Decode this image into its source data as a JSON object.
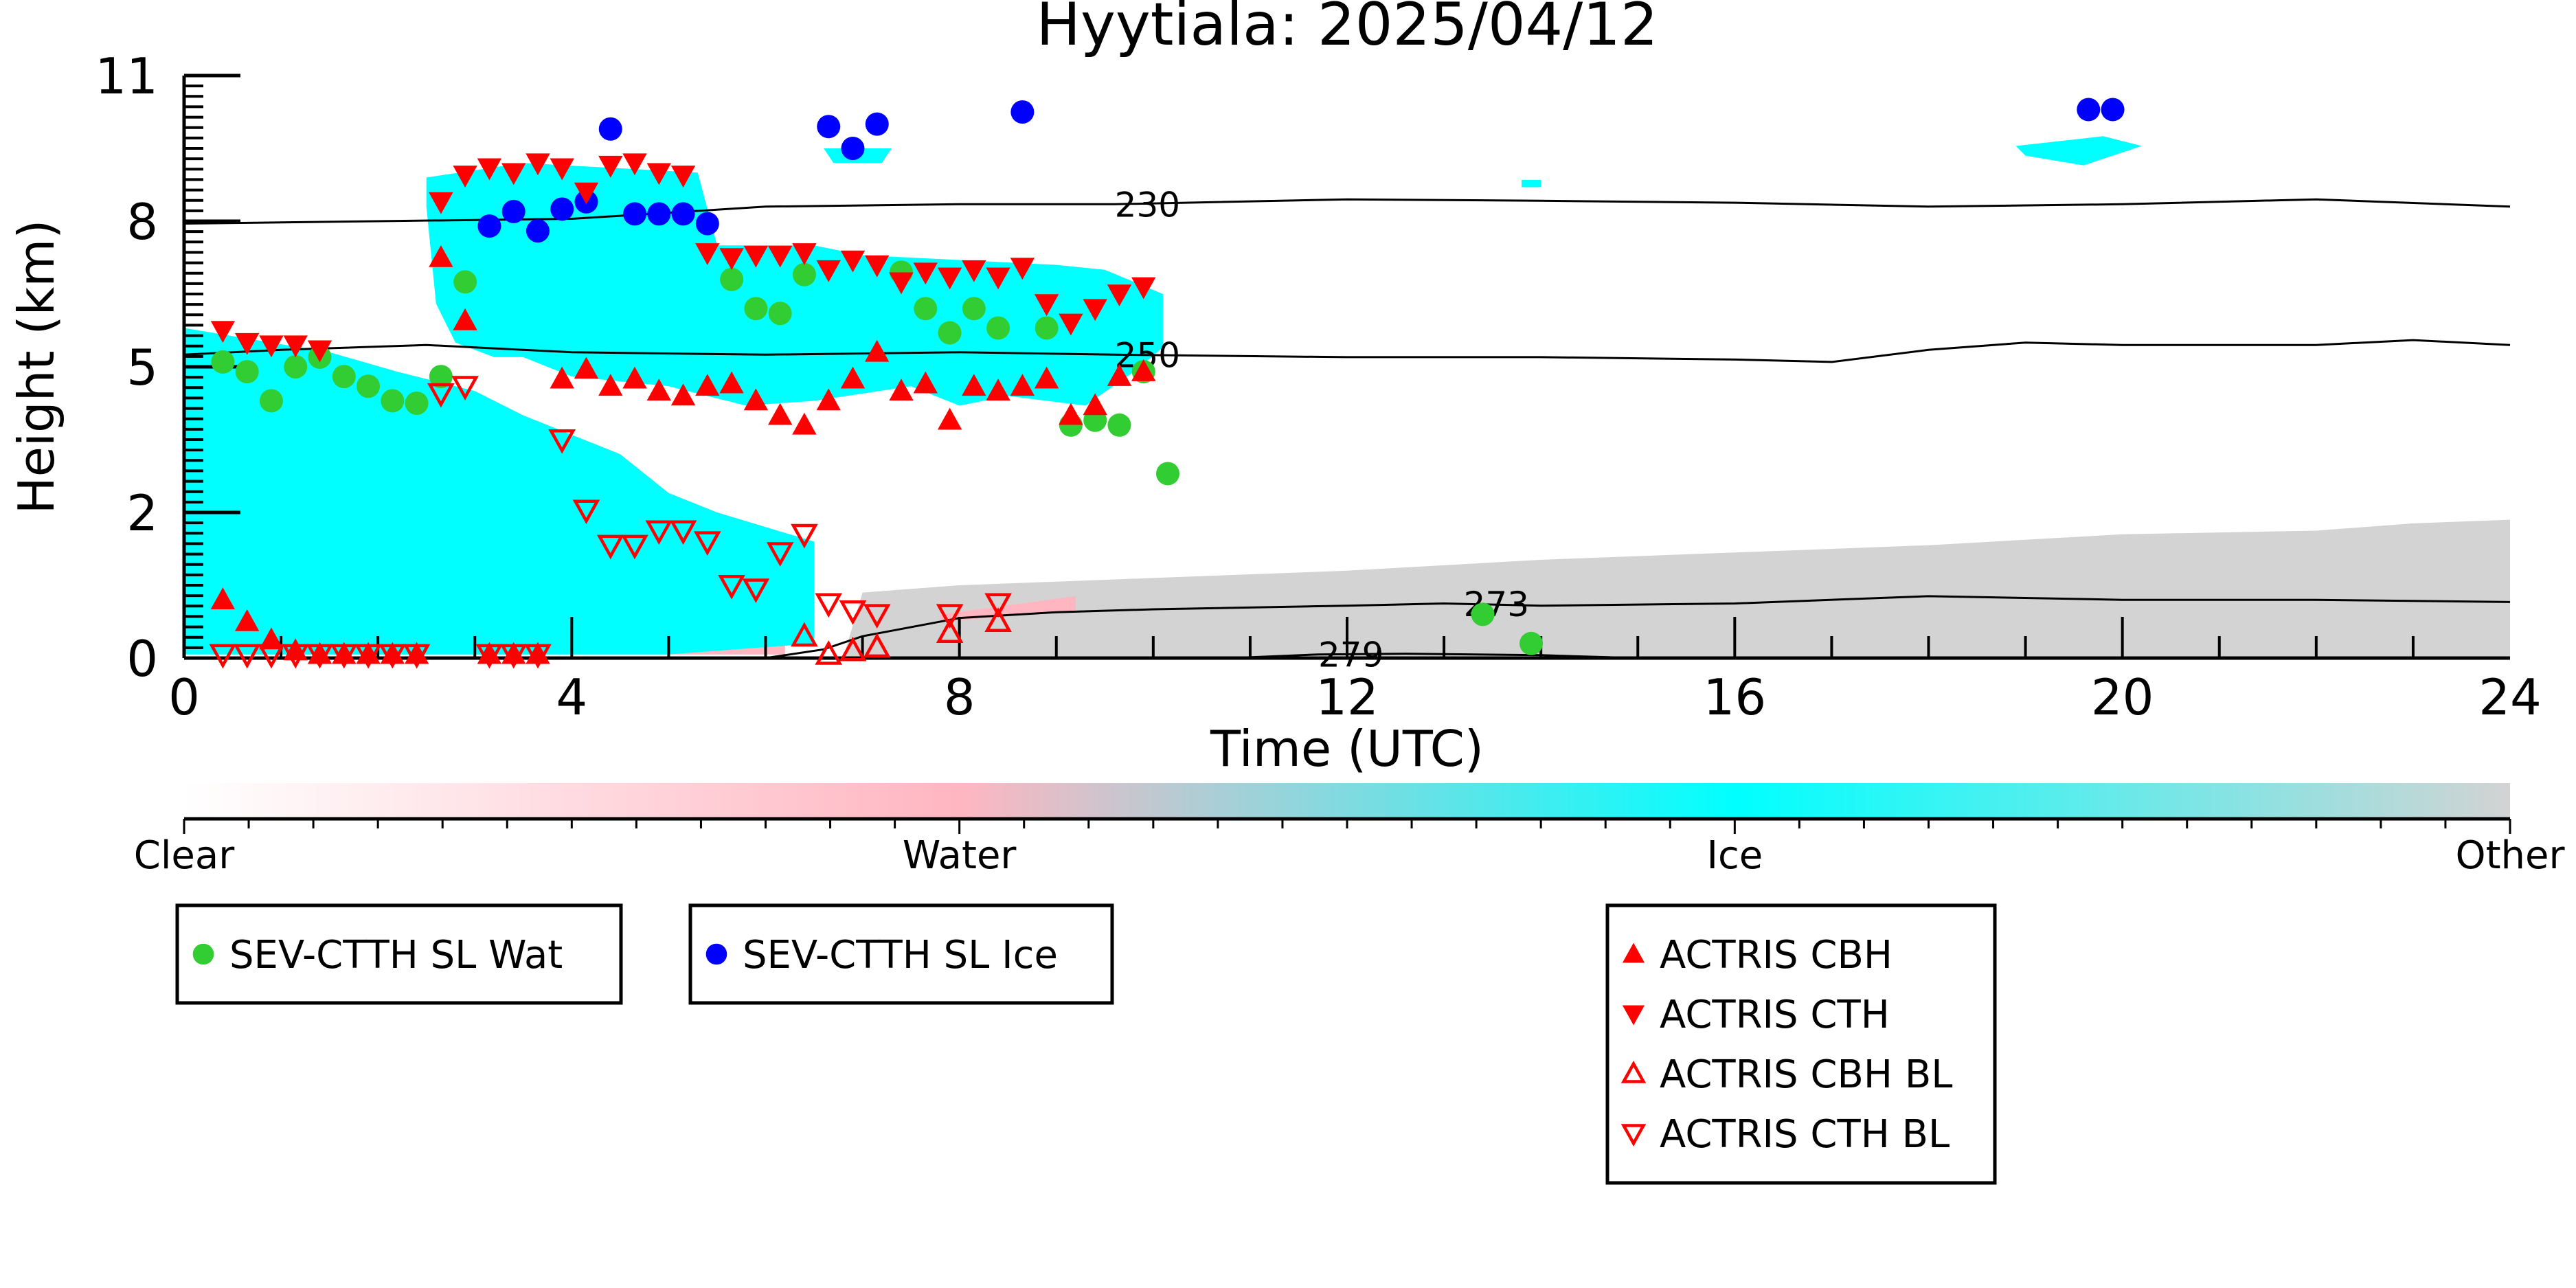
{
  "chart_data": {
    "type": "scatter",
    "title": "Hyytiala: 2025/04/12",
    "xlabel": "Time (UTC)",
    "ylabel": "Height (km)",
    "xlim": [
      0,
      24
    ],
    "ylim": [
      0,
      11
    ],
    "x_ticks": [
      0,
      4,
      8,
      12,
      16,
      20,
      24
    ],
    "y_ticks": [
      0,
      2,
      5,
      8,
      11
    ],
    "y_scale_note": "non-linear: 0,2,5,8,11 equally spaced",
    "colors": {
      "ice": "#00ffff",
      "water": "#ffb6c1",
      "other": "#d3d3d3",
      "wat_marker": "#32cd32",
      "ice_marker": "#0000ff",
      "actris": "#ff0000"
    },
    "colorbar": {
      "labels": [
        "Clear",
        "Water",
        "Ice",
        "Other"
      ]
    },
    "isotherms": [
      {
        "label": "230",
        "label_x": 9.6,
        "points": [
          [
            0,
            7.95
          ],
          [
            2,
            8.0
          ],
          [
            4,
            8.05
          ],
          [
            6,
            8.3
          ],
          [
            8,
            8.35
          ],
          [
            9.6,
            8.35
          ],
          [
            12,
            8.45
          ],
          [
            14,
            8.42
          ],
          [
            16,
            8.38
          ],
          [
            18,
            8.3
          ],
          [
            20,
            8.35
          ],
          [
            22,
            8.45
          ],
          [
            24,
            8.3
          ]
        ]
      },
      {
        "label": "250",
        "label_x": 9.6,
        "points": [
          [
            0,
            5.25
          ],
          [
            1,
            5.35
          ],
          [
            2.5,
            5.45
          ],
          [
            4,
            5.3
          ],
          [
            6,
            5.25
          ],
          [
            8,
            5.3
          ],
          [
            9.6,
            5.25
          ],
          [
            12,
            5.2
          ],
          [
            14,
            5.2
          ],
          [
            16,
            5.15
          ],
          [
            17,
            5.1
          ],
          [
            18,
            5.35
          ],
          [
            19,
            5.5
          ],
          [
            20,
            5.45
          ],
          [
            22,
            5.45
          ],
          [
            23,
            5.55
          ],
          [
            24,
            5.45
          ]
        ]
      },
      {
        "label": "273",
        "label_x": 13.2,
        "points": [
          [
            0,
            0
          ],
          [
            6,
            0
          ],
          [
            6.6,
            0.12
          ],
          [
            7,
            0.3
          ],
          [
            8,
            0.55
          ],
          [
            9,
            0.63
          ],
          [
            10,
            0.67
          ],
          [
            12,
            0.72
          ],
          [
            13,
            0.75
          ],
          [
            14,
            0.72
          ],
          [
            16,
            0.75
          ],
          [
            18,
            0.85
          ],
          [
            20,
            0.8
          ],
          [
            22,
            0.8
          ],
          [
            24,
            0.77
          ]
        ]
      },
      {
        "label": "279",
        "label_x": 11.7,
        "points": [
          [
            10.8,
            0.0
          ],
          [
            11.7,
            0.05
          ],
          [
            12.6,
            0.06
          ],
          [
            14,
            0.04
          ],
          [
            15,
            0.0
          ]
        ]
      }
    ],
    "cloud_regions": {
      "ice": [
        {
          "points": [
            [
              0,
              5.8
            ],
            [
              1.5,
              5.3
            ],
            [
              2.2,
              4.9
            ],
            [
              3,
              4.5
            ],
            [
              3.5,
              4.0
            ],
            [
              4.5,
              3.2
            ],
            [
              5,
              2.4
            ],
            [
              5.5,
              2.0
            ],
            [
              6,
              1.8
            ],
            [
              6.5,
              1.6
            ],
            [
              6.5,
              0.2
            ],
            [
              5,
              0.05
            ],
            [
              0,
              0.05
            ]
          ]
        },
        {
          "points": [
            [
              2.5,
              8.9
            ],
            [
              3.5,
              9.2
            ],
            [
              5.3,
              9.0
            ],
            [
              5.5,
              7.5
            ],
            [
              6.5,
              7.5
            ],
            [
              7,
              7.3
            ],
            [
              8,
              7.2
            ],
            [
              9,
              7.1
            ],
            [
              9.5,
              7.0
            ],
            [
              10.1,
              6.5
            ],
            [
              10.1,
              5.4
            ],
            [
              9.8,
              4.9
            ],
            [
              9.3,
              4.2
            ],
            [
              8.5,
              4.4
            ],
            [
              8,
              4.2
            ],
            [
              7.5,
              4.6
            ],
            [
              6.5,
              4.3
            ],
            [
              5.8,
              4.2
            ],
            [
              5,
              4.6
            ],
            [
              4,
              4.8
            ],
            [
              3.5,
              5.2
            ],
            [
              3.2,
              5.2
            ],
            [
              2.8,
              5.5
            ],
            [
              2.6,
              6.3
            ],
            [
              2.5,
              8.3
            ]
          ]
        },
        {
          "points": [
            [
              6.6,
              9.5
            ],
            [
              7.3,
              9.5
            ],
            [
              7.2,
              9.2
            ],
            [
              6.7,
              9.2
            ]
          ]
        },
        {
          "points": [
            [
              18.9,
              9.55
            ],
            [
              19.8,
              9.75
            ],
            [
              20.2,
              9.55
            ],
            [
              19.6,
              9.15
            ],
            [
              19.0,
              9.35
            ]
          ]
        },
        {
          "points": [
            [
              13.8,
              8.85
            ],
            [
              14.0,
              8.85
            ],
            [
              14.0,
              8.7
            ],
            [
              13.8,
              8.7
            ]
          ]
        }
      ],
      "other": [
        {
          "points": [
            [
              6.8,
              0
            ],
            [
              24,
              0
            ],
            [
              24,
              1.9
            ],
            [
              23,
              1.85
            ],
            [
              22,
              1.75
            ],
            [
              20,
              1.7
            ],
            [
              18,
              1.55
            ],
            [
              16,
              1.45
            ],
            [
              14,
              1.35
            ],
            [
              12,
              1.2
            ],
            [
              10,
              1.1
            ],
            [
              9,
              1.05
            ],
            [
              8,
              1.0
            ],
            [
              7,
              0.9
            ]
          ]
        }
      ],
      "water": [
        {
          "points": [
            [
              0.3,
              0.05
            ],
            [
              6.2,
              0.05
            ],
            [
              6.2,
              0.35
            ],
            [
              0.3,
              0.35
            ]
          ]
        },
        {
          "points": [
            [
              7.8,
              0.6
            ],
            [
              9.2,
              0.85
            ],
            [
              9.2,
              0.65
            ],
            [
              7.8,
              0.5
            ]
          ]
        }
      ]
    },
    "series": [
      {
        "name": "SEV-CTTH SL Wat",
        "marker": "circle",
        "color": "#32cd32",
        "x": [
          0.4,
          0.65,
          0.9,
          1.15,
          1.4,
          1.65,
          1.9,
          2.15,
          2.4,
          2.65,
          2.9,
          5.65,
          5.9,
          6.15,
          6.4,
          7.4,
          7.65,
          7.9,
          8.15,
          8.4,
          8.9,
          9.15,
          9.4,
          9.65,
          9.9,
          10.15,
          13.4,
          13.9
        ],
        "y": [
          5.1,
          4.9,
          4.3,
          5.0,
          5.2,
          4.8,
          4.6,
          4.3,
          4.25,
          4.8,
          6.75,
          6.8,
          6.2,
          6.1,
          6.9,
          6.95,
          6.2,
          5.7,
          6.2,
          5.8,
          5.8,
          3.8,
          3.9,
          3.8,
          4.9,
          2.8,
          0.6,
          0.2
        ]
      },
      {
        "name": "SEV-CTTH SL Ice",
        "marker": "circle",
        "color": "#0000ff",
        "x": [
          3.15,
          3.4,
          3.65,
          3.9,
          4.15,
          4.4,
          4.65,
          4.9,
          5.15,
          5.4,
          6.65,
          6.9,
          7.15,
          8.65,
          19.65,
          19.9
        ],
        "y": [
          7.9,
          8.2,
          7.8,
          8.25,
          8.4,
          9.9,
          8.15,
          8.15,
          8.15,
          7.95,
          9.95,
          9.5,
          10.0,
          10.25,
          10.3,
          10.3
        ]
      },
      {
        "name": "ACTRIS CBH",
        "marker": "triangle-up",
        "color": "#ff0000",
        "x": [
          0.4,
          0.65,
          0.9,
          1.15,
          1.4,
          1.65,
          1.9,
          2.15,
          2.4,
          2.65,
          2.9,
          3.15,
          3.4,
          3.65,
          3.9,
          4.15,
          4.4,
          4.65,
          4.9,
          5.15,
          5.4,
          5.65,
          5.9,
          6.15,
          6.4,
          6.65,
          6.9,
          7.15,
          7.4,
          7.65,
          7.9,
          8.15,
          8.4,
          8.65,
          8.9,
          9.15,
          9.4,
          9.65,
          9.9
        ],
        "y": [
          0.8,
          0.5,
          0.25,
          0.1,
          0.05,
          0.05,
          0.05,
          0.05,
          0.05,
          7.25,
          5.95,
          0.05,
          0.05,
          0.05,
          4.75,
          4.95,
          4.6,
          4.75,
          4.5,
          4.4,
          4.6,
          4.65,
          4.3,
          4.0,
          3.8,
          4.3,
          4.75,
          5.3,
          4.5,
          4.65,
          3.9,
          4.6,
          4.5,
          4.6,
          4.75,
          4.0,
          4.2,
          4.8,
          4.9
        ]
      },
      {
        "name": "ACTRIS CTH",
        "marker": "triangle-down",
        "color": "#ff0000",
        "x": [
          0.4,
          0.65,
          0.9,
          1.15,
          1.4,
          2.65,
          2.9,
          3.15,
          3.4,
          3.65,
          3.9,
          4.15,
          4.4,
          4.65,
          4.9,
          5.15,
          5.4,
          5.65,
          5.9,
          6.15,
          6.4,
          6.65,
          6.9,
          7.15,
          7.4,
          7.65,
          7.9,
          8.15,
          8.4,
          8.65,
          8.9,
          9.15,
          9.4,
          9.65,
          9.9
        ],
        "y": [
          5.75,
          5.5,
          5.45,
          5.45,
          5.35,
          8.4,
          8.95,
          9.1,
          9.0,
          9.2,
          9.1,
          8.6,
          9.15,
          9.2,
          9.0,
          8.95,
          7.35,
          7.25,
          7.3,
          7.3,
          7.35,
          7.0,
          7.2,
          7.1,
          6.75,
          6.95,
          6.85,
          7.0,
          6.85,
          7.05,
          6.3,
          5.9,
          6.2,
          6.5,
          6.65
        ]
      },
      {
        "name": "ACTRIS CBH BL",
        "marker": "triangle-up-open",
        "color": "#ff0000",
        "x": [
          6.4,
          6.65,
          6.9,
          7.15,
          7.9,
          8.4
        ],
        "y": [
          0.3,
          0.05,
          0.1,
          0.15,
          0.35,
          0.5
        ]
      },
      {
        "name": "ACTRIS CTH BL",
        "marker": "triangle-down-open",
        "color": "#ff0000",
        "x": [
          2.65,
          2.9,
          3.9,
          4.15,
          4.4,
          4.65,
          4.9,
          5.15,
          5.4,
          5.65,
          5.9,
          6.15,
          6.4,
          6.65,
          6.9,
          7.15,
          7.9,
          8.4,
          1.9,
          2.15,
          2.4,
          0.4,
          0.65,
          0.9,
          1.15,
          1.4,
          1.65,
          3.15,
          3.4,
          3.65
        ],
        "y": [
          4.45,
          4.6,
          3.5,
          2.05,
          1.55,
          1.55,
          1.75,
          1.75,
          1.6,
          1.0,
          0.95,
          1.45,
          1.7,
          0.75,
          0.65,
          0.6,
          0.6,
          0.75,
          0.05,
          0.05,
          0.05,
          0.05,
          0.05,
          0.05,
          0.05,
          0.05,
          0.05,
          0.05,
          0.05,
          0.05
        ]
      }
    ],
    "legends": [
      {
        "entries": [
          "SEV-CTTH SL Wat"
        ]
      },
      {
        "entries": [
          "SEV-CTTH SL Ice"
        ]
      },
      {
        "entries": [
          "ACTRIS CBH",
          "ACTRIS CTH",
          "ACTRIS CBH BL",
          "ACTRIS CTH BL"
        ]
      }
    ]
  }
}
